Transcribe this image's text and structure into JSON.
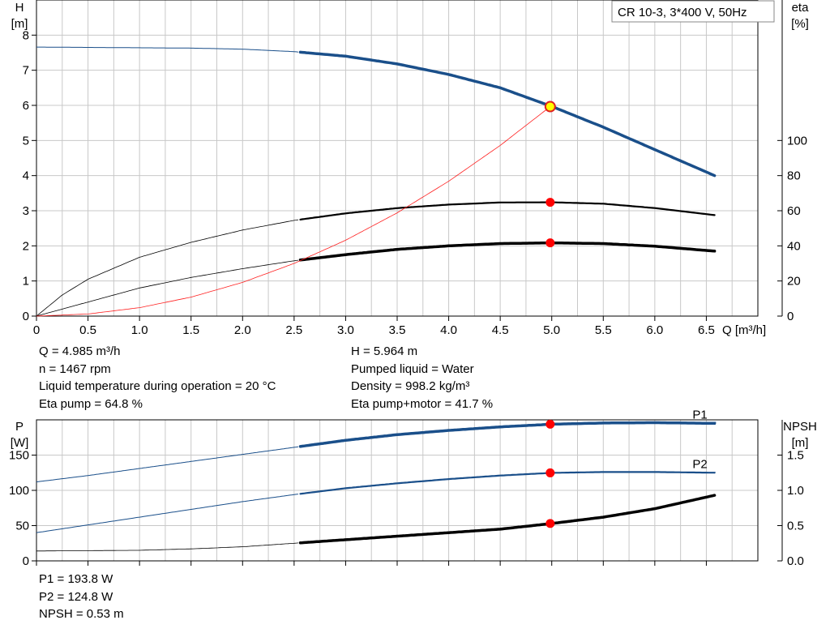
{
  "chart_data": [
    {
      "type": "line",
      "legend_box": "CR 10-3, 3*400 V, 50Hz",
      "x_axis": {
        "label": "Q [m³/h]",
        "range": [
          0,
          7.0
        ],
        "ticks": [
          0,
          0.5,
          1.0,
          1.5,
          2.0,
          2.5,
          3.0,
          3.5,
          4.0,
          4.5,
          5.0,
          5.5,
          6.0,
          6.5
        ],
        "tick_labels": [
          "0",
          "0.5",
          "1.0",
          "1.5",
          "2.0",
          "2.5",
          "3.0",
          "3.5",
          "4.0",
          "4.5",
          "5.0",
          "5.5",
          "6.0",
          "6.5"
        ]
      },
      "y_left": {
        "label_top": "H",
        "label_unit": "[m]",
        "range": [
          0,
          9.0
        ],
        "ticks": [
          0,
          1,
          2,
          3,
          4,
          5,
          6,
          7,
          8
        ],
        "tick_labels": [
          "0",
          "1",
          "2",
          "3",
          "4",
          "5",
          "6",
          "7",
          "8"
        ]
      },
      "y_right": {
        "label_top": "eta",
        "label_unit": "[%]",
        "range": [
          0,
          180
        ],
        "ticks": [
          0,
          20,
          40,
          60,
          80,
          100
        ],
        "tick_labels": [
          "0",
          "20",
          "40",
          "60",
          "80",
          "100"
        ]
      },
      "grid": true,
      "series": [
        {
          "id": "head",
          "axis": "left",
          "color": "#1a4f8a",
          "width": 3.5,
          "thin_width": 1,
          "x": [
            0,
            0.5,
            1.0,
            1.5,
            2.0,
            2.5,
            3.0,
            3.5,
            4.0,
            4.5,
            5.0,
            5.5,
            6.0,
            6.58
          ],
          "y": [
            7.66,
            7.65,
            7.64,
            7.63,
            7.6,
            7.53,
            7.4,
            7.18,
            6.88,
            6.5,
            5.97,
            5.38,
            4.74,
            4.0
          ],
          "thick_from": 2.55
        },
        {
          "id": "eta-pump",
          "axis": "right",
          "color": "#000000",
          "width": 2.2,
          "thin_width": 0.8,
          "x": [
            0,
            0.25,
            0.5,
            1.0,
            1.5,
            2.0,
            2.5,
            3.0,
            3.5,
            4.0,
            4.5,
            5.0,
            5.5,
            6.0,
            6.58
          ],
          "y": [
            0,
            12,
            21,
            33.5,
            42,
            49,
            54.5,
            58.5,
            61.5,
            63.5,
            64.7,
            64.8,
            64.0,
            61.5,
            57.5
          ],
          "thick_from": 2.55
        },
        {
          "id": "eta-pump-motor",
          "axis": "right",
          "color": "#000000",
          "width": 3.5,
          "thin_width": 0.8,
          "x": [
            0,
            0.5,
            1.0,
            1.5,
            2.0,
            2.5,
            3.0,
            3.5,
            4.0,
            4.5,
            5.0,
            5.5,
            6.0,
            6.58
          ],
          "y": [
            0,
            8,
            16,
            22,
            27,
            31.5,
            35,
            38,
            40,
            41.3,
            41.7,
            41.3,
            39.8,
            37
          ],
          "thick_from": 2.55
        },
        {
          "id": "system-curve",
          "axis": "left",
          "color": "#ff2020",
          "width": 0.8,
          "thin_width": 0.8,
          "x": [
            0,
            0.5,
            1.0,
            1.5,
            2.0,
            2.5,
            3.0,
            3.5,
            4.0,
            4.5,
            4.985
          ],
          "y": [
            0,
            0.06,
            0.24,
            0.54,
            0.96,
            1.5,
            2.16,
            2.94,
            3.84,
            4.86,
            5.964
          ]
        }
      ],
      "duty_points": [
        {
          "x": 4.985,
          "y": 5.964,
          "axis": "left",
          "style": "operating"
        },
        {
          "x": 4.985,
          "y": 64.8,
          "axis": "right",
          "style": "red"
        },
        {
          "x": 4.985,
          "y": 41.7,
          "axis": "right",
          "style": "red"
        }
      ]
    },
    {
      "type": "line",
      "x_axis": {
        "range": [
          0,
          7.0
        ],
        "ticks": [
          0,
          0.5,
          1.0,
          1.5,
          2.0,
          2.5,
          3.0,
          3.5,
          4.0,
          4.5,
          5.0,
          5.5,
          6.0,
          6.5
        ]
      },
      "y_left": {
        "label_top": "P",
        "label_unit": "[W]",
        "range": [
          0,
          200
        ],
        "ticks": [
          0,
          50,
          100,
          150
        ],
        "tick_labels": [
          "0",
          "50",
          "100",
          "150"
        ]
      },
      "y_right": {
        "label_top": "NPSH",
        "label_unit": "[m]",
        "range": [
          0,
          2.0
        ],
        "ticks": [
          0,
          0.5,
          1.0,
          1.5
        ],
        "tick_labels": [
          "0.0",
          "0.5",
          "1.0",
          "1.5"
        ]
      },
      "grid": true,
      "series": [
        {
          "id": "P1",
          "name": "P1",
          "axis": "left",
          "color": "#1a4f8a",
          "width": 3.5,
          "thin_width": 1,
          "x": [
            0,
            0.5,
            1.0,
            1.5,
            2.0,
            2.5,
            3.0,
            3.5,
            4.0,
            4.5,
            5.0,
            5.5,
            6.0,
            6.58
          ],
          "y": [
            112,
            121,
            131,
            141,
            151,
            161,
            171,
            179,
            185,
            190,
            193.8,
            195.5,
            196,
            195
          ],
          "thick_from": 2.55
        },
        {
          "id": "P2",
          "name": "P2",
          "axis": "left",
          "color": "#1a4f8a",
          "width": 2.2,
          "thin_width": 1,
          "x": [
            0,
            0.5,
            1.0,
            1.5,
            2.0,
            2.5,
            3.0,
            3.5,
            4.0,
            4.5,
            5.0,
            5.5,
            6.0,
            6.58
          ],
          "y": [
            40,
            51,
            62,
            73,
            84,
            94,
            103,
            110,
            116,
            121,
            124.8,
            126,
            126,
            125
          ],
          "thick_from": 2.55
        },
        {
          "id": "NPSH",
          "axis": "right",
          "color": "#000000",
          "width": 3.5,
          "thin_width": 0.8,
          "x": [
            0,
            0.5,
            1.0,
            1.5,
            2.0,
            2.5,
            3.0,
            3.5,
            4.0,
            4.5,
            5.0,
            5.5,
            6.0,
            6.58
          ],
          "y": [
            0.14,
            0.145,
            0.15,
            0.17,
            0.2,
            0.25,
            0.3,
            0.35,
            0.4,
            0.45,
            0.53,
            0.62,
            0.74,
            0.93
          ],
          "thick_from": 2.55
        }
      ],
      "duty_points": [
        {
          "x": 4.985,
          "y": 193.8,
          "axis": "left",
          "style": "red"
        },
        {
          "x": 4.985,
          "y": 124.8,
          "axis": "left",
          "style": "red"
        },
        {
          "x": 4.985,
          "y": 0.53,
          "axis": "right",
          "style": "red"
        }
      ]
    }
  ],
  "info_upper": {
    "left": [
      "Q = 4.985 m³/h",
      "n = 1467 rpm",
      "Liquid temperature during operation = 20 °C",
      "Eta pump = 64.8 %"
    ],
    "right": [
      "H = 5.964 m",
      "Pumped liquid = Water",
      "Density = 998.2 kg/m³",
      "Eta pump+motor = 41.7 %"
    ]
  },
  "info_lower": [
    "P1 = 193.8 W",
    "P2 = 124.8 W",
    "NPSH = 0.53 m"
  ],
  "colors": {
    "grid": "#c8c8c8",
    "axis": "#000000",
    "blue": "#1a4f8a",
    "red": "#ff0000",
    "operating_fill": "#ffff00"
  }
}
